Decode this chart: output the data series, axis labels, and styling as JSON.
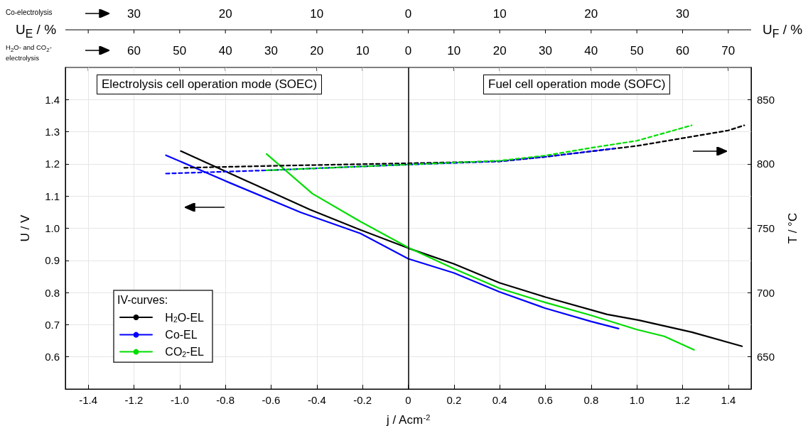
{
  "chart_data": {
    "type": "line",
    "xlabel": "j / Acm$^{-2}$",
    "ylabel": "U / V",
    "y2label": "T / °C",
    "legend_title": "IV-curves:",
    "annotations": [
      "Electrolysis cell operation mode (SOEC)",
      "Fuel cell operation mode (SOFC)",
      "Co-electrolysis",
      "H$_{2}$O- and CO$_{2}$-electrolysis",
      "U$_{E}$ / %",
      "U$_{F}$ / %",
      "30",
      "20",
      "10",
      "0",
      "10",
      "20",
      "30",
      "60",
      "50",
      "40",
      "30",
      "20",
      "10",
      "0",
      "10",
      "20",
      "30",
      "40",
      "50",
      "60",
      "70"
    ],
    "xlim": [
      -1.5,
      1.5
    ],
    "xticks": [
      -1.4,
      -1.2,
      {
        "value": -1,
        "label": "-1.0"
      },
      -0.8,
      -0.6,
      -0.4,
      -0.2,
      0,
      0.2,
      0.4,
      0.6,
      0.8,
      {
        "value": 1,
        "label": "1.0"
      },
      1.2,
      1.4
    ],
    "ylim": [
      0.5,
      1.5
    ],
    "yticks": [
      0.6,
      0.7,
      0.8,
      0.9,
      {
        "value": 1,
        "label": "1.0"
      },
      1.1,
      1.2,
      1.3,
      1.4
    ],
    "y2lim": [
      625,
      875
    ],
    "y2ticks": [
      650,
      700,
      750,
      800,
      850
    ],
    "series": [
      {
        "name": "H$_{2}$O-EL",
        "color": "#000000",
        "x": [
          -0.995,
          -0.67,
          -0.43,
          -0.21,
          0,
          0.2,
          0.4,
          0.6,
          0.87,
          1.01,
          1.24,
          1.46
        ],
        "values": [
          1.24,
          1.135,
          1.058,
          0.995,
          0.938,
          0.889,
          0.83,
          0.786,
          0.732,
          0.714,
          0.677,
          0.633
        ]
      },
      {
        "name": "Co-EL",
        "color": "#0000ff",
        "x": [
          -1.06,
          -0.78,
          -0.47,
          -0.21,
          0,
          0.2,
          0.4,
          0.6,
          0.8,
          0.92
        ],
        "values": [
          1.227,
          1.141,
          1.049,
          0.984,
          0.905,
          0.861,
          0.802,
          0.751,
          0.71,
          0.688
        ]
      },
      {
        "name": "CO$_{2}$-EL",
        "color": "#00dd00",
        "x": [
          -0.62,
          -0.42,
          -0.21,
          0,
          0.2,
          0.4,
          0.6,
          0.8,
          1.0,
          1.12,
          1.25
        ],
        "values": [
          1.231,
          1.108,
          1.021,
          0.94,
          0.874,
          0.813,
          0.769,
          0.729,
          0.685,
          0.664,
          0.622
        ]
      },
      {
        "color": "#000000",
        "axis": "y2",
        "line_style": "dashed",
        "x": [
          -0.98,
          -0.59,
          0,
          0.4,
          0.6,
          1.0,
          1.2,
          1.4,
          1.47
        ],
        "values": [
          797,
          798.5,
          800.5,
          802,
          805.5,
          814,
          820,
          826,
          830
        ]
      },
      {
        "color": "#0000ff",
        "axis": "y2",
        "line_style": "dashed",
        "x": [
          -1.06,
          -0.62,
          0,
          0.4,
          0.6,
          0.9
        ],
        "values": [
          792.5,
          795,
          799.5,
          802,
          805.5,
          812
        ]
      },
      {
        "color": "#00dd00",
        "axis": "y2",
        "line_style": "dashed",
        "x": [
          -0.62,
          0,
          0.4,
          0.6,
          0.8,
          1.0,
          1.16,
          1.24
        ],
        "values": [
          795,
          799.5,
          802.5,
          806.5,
          812.5,
          818,
          826,
          830
        ]
      }
    ],
    "ref_lines": [
      {
        "axis": "x",
        "value": 0,
        "color": "#000000"
      }
    ],
    "grid": true,
    "legend": "bottom left",
    "marker": "none",
    "line_style": "solid"
  }
}
